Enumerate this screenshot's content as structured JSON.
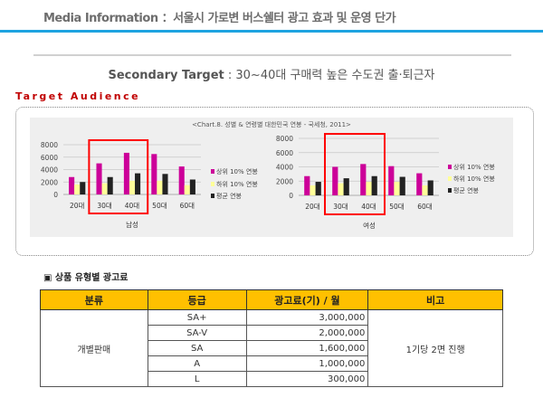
{
  "header": {
    "title": "Media Information ：서울시 가로변 버스쉘터 광고 효과 및 운영 단가"
  },
  "secondary": {
    "label": "Secondary Target",
    "text": " : 30~40대 구매력 높은 수도권 출·퇴근자"
  },
  "section_title": "Target Audience",
  "chart_caption": "<Chart.8. 성별 & 연령별 대한민국 연봉 - 국세청, 2011>",
  "colors": {
    "top": "#cc0099",
    "bottom": "#ffff99",
    "avg": "#222222",
    "highlight": "#ff0000",
    "accent": "#1ea3e0",
    "table_header": "#ffc000"
  },
  "chart_data": [
    {
      "type": "bar",
      "xlabel": "남성",
      "categories": [
        "20대",
        "30대",
        "40대",
        "50대",
        "60대"
      ],
      "ylim": [
        0,
        8000
      ],
      "yticks": [
        0,
        2000,
        4000,
        6000,
        8000
      ],
      "grid": true,
      "legend": "right",
      "highlighted_categories": [
        "30대",
        "40대"
      ],
      "series": [
        {
          "name": "상위 10% 연봉",
          "values": [
            2800,
            5000,
            6700,
            6500,
            4500
          ]
        },
        {
          "name": "하위 10% 연봉",
          "values": [
            1600,
            1800,
            2200,
            2200,
            1500
          ]
        },
        {
          "name": "평균 연봉",
          "values": [
            2000,
            2800,
            3400,
            3300,
            2400
          ]
        }
      ]
    },
    {
      "type": "bar",
      "xlabel": "여성",
      "categories": [
        "20대",
        "30대",
        "40대",
        "50대",
        "60대"
      ],
      "ylim": [
        0,
        8000
      ],
      "yticks": [
        0,
        2000,
        4000,
        6000,
        8000
      ],
      "grid": true,
      "legend": "right",
      "highlighted_categories": [
        "30대",
        "40대"
      ],
      "series": [
        {
          "name": "상위 10% 연봉",
          "values": [
            2700,
            4000,
            4400,
            4100,
            3100
          ]
        },
        {
          "name": "하위 10% 연봉",
          "values": [
            1400,
            1700,
            1900,
            1900,
            1400
          ]
        },
        {
          "name": "평균 연봉",
          "values": [
            1900,
            2400,
            2700,
            2600,
            2100
          ]
        }
      ]
    }
  ],
  "table": {
    "title": "▣ 상품 유형별 광고료",
    "headers": [
      "분류",
      "등급",
      "광고료(기) / 월",
      "비고"
    ],
    "category": "개별판매",
    "note": "1기당 2면 진행",
    "rows": [
      {
        "grade": "SA+",
        "price": "3,000,000"
      },
      {
        "grade": "SA-V",
        "price": "2,000,000"
      },
      {
        "grade": "SA",
        "price": "1,600,000"
      },
      {
        "grade": "A",
        "price": "1,000,000"
      },
      {
        "grade": "L",
        "price": "300,000"
      }
    ]
  }
}
